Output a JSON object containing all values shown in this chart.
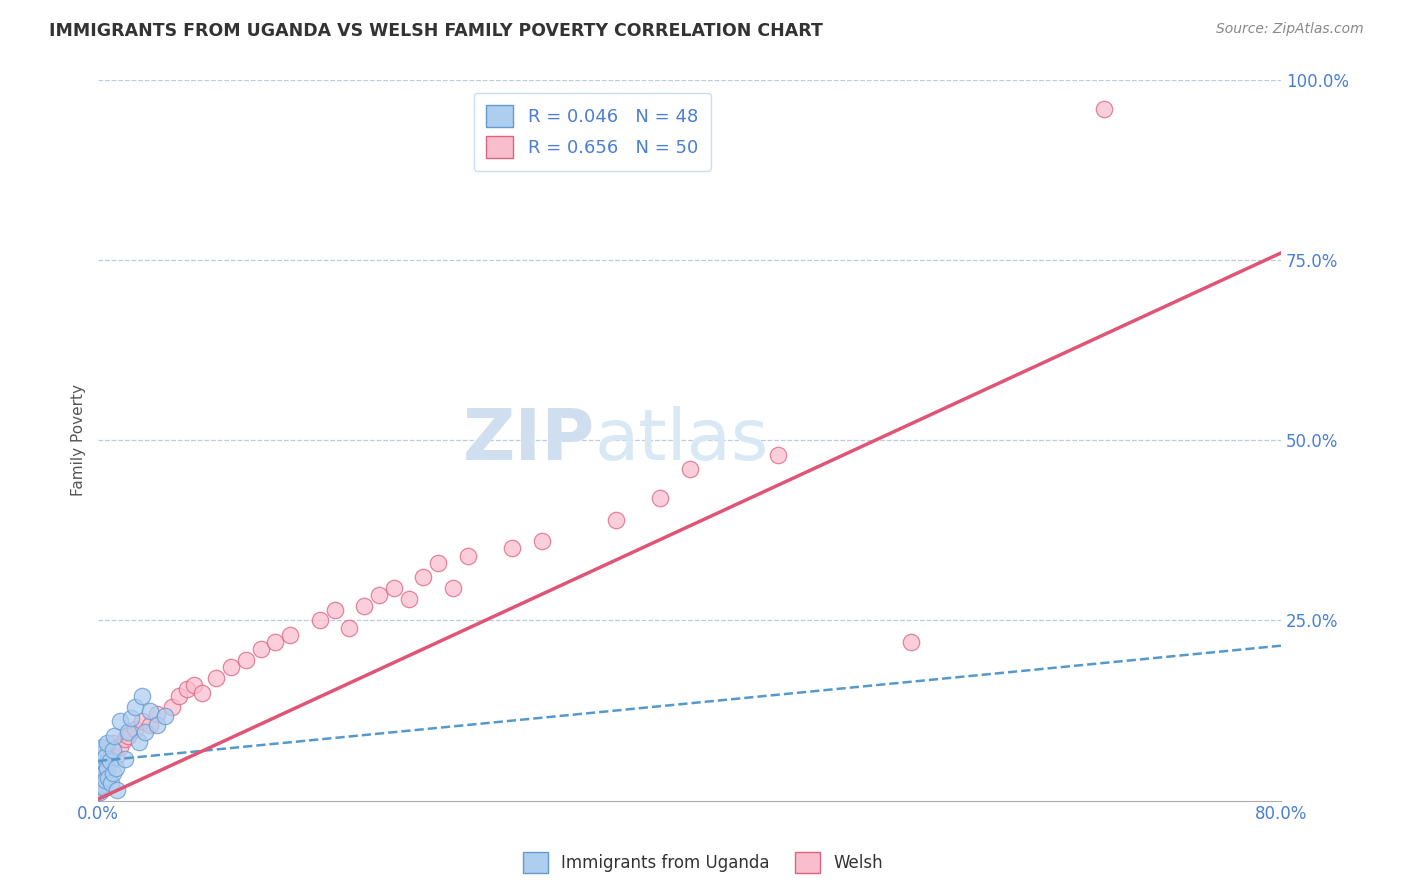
{
  "title": "IMMIGRANTS FROM UGANDA VS WELSH FAMILY POVERTY CORRELATION CHART",
  "source": "Source: ZipAtlas.com",
  "ylabel": "Family Poverty",
  "x_min": 0.0,
  "x_max": 0.8,
  "y_min": 0.0,
  "y_max": 1.0,
  "yticks": [
    0.0,
    0.25,
    0.5,
    0.75,
    1.0
  ],
  "ytick_labels": [
    "",
    "25.0%",
    "50.0%",
    "75.0%",
    "100.0%"
  ],
  "xticks": [
    0.0,
    0.16,
    0.32,
    0.48,
    0.64,
    0.8
  ],
  "xtick_labels": [
    "0.0%",
    "",
    "",
    "",
    "",
    "80.0%"
  ],
  "legend_r1": "R = 0.046",
  "legend_n1": "N = 48",
  "legend_r2": "R = 0.656",
  "legend_n2": "N = 50",
  "blue_fill": "#aecef0",
  "pink_fill": "#f9bece",
  "blue_edge": "#6699cc",
  "pink_edge": "#e06080",
  "blue_line_color": "#5599cc",
  "pink_line_color": "#e05575",
  "title_color": "#333333",
  "axis_color": "#4a7fd4",
  "grid_color": "#b8cce8",
  "watermark_color": "#d0dff0",
  "background_color": "#ffffff",
  "blue_scatter_x": [
    0.0002,
    0.0003,
    0.0004,
    0.0005,
    0.0006,
    0.0007,
    0.0008,
    0.001,
    0.001,
    0.001,
    0.0012,
    0.0013,
    0.0014,
    0.0015,
    0.0016,
    0.0018,
    0.002,
    0.002,
    0.002,
    0.002,
    0.003,
    0.003,
    0.003,
    0.004,
    0.004,
    0.005,
    0.005,
    0.006,
    0.006,
    0.007,
    0.008,
    0.009,
    0.01,
    0.01,
    0.011,
    0.012,
    0.013,
    0.015,
    0.018,
    0.02,
    0.022,
    0.025,
    0.028,
    0.03,
    0.032,
    0.035,
    0.04,
    0.045
  ],
  "blue_scatter_y": [
    0.035,
    0.04,
    0.028,
    0.05,
    0.022,
    0.018,
    0.03,
    0.045,
    0.06,
    0.012,
    0.055,
    0.038,
    0.025,
    0.07,
    0.015,
    0.042,
    0.052,
    0.033,
    0.02,
    0.065,
    0.048,
    0.022,
    0.075,
    0.038,
    0.018,
    0.06,
    0.028,
    0.045,
    0.08,
    0.032,
    0.055,
    0.025,
    0.07,
    0.038,
    0.09,
    0.045,
    0.015,
    0.11,
    0.058,
    0.095,
    0.115,
    0.13,
    0.082,
    0.145,
    0.095,
    0.125,
    0.105,
    0.118
  ],
  "pink_scatter_x": [
    0.0003,
    0.0005,
    0.0008,
    0.001,
    0.0015,
    0.002,
    0.003,
    0.004,
    0.005,
    0.006,
    0.008,
    0.01,
    0.012,
    0.015,
    0.018,
    0.02,
    0.025,
    0.03,
    0.035,
    0.04,
    0.05,
    0.055,
    0.06,
    0.065,
    0.07,
    0.08,
    0.09,
    0.1,
    0.11,
    0.12,
    0.13,
    0.15,
    0.16,
    0.17,
    0.18,
    0.19,
    0.2,
    0.21,
    0.22,
    0.23,
    0.24,
    0.25,
    0.28,
    0.3,
    0.35,
    0.38,
    0.4,
    0.46,
    0.55,
    0.68
  ],
  "pink_scatter_y": [
    0.02,
    0.03,
    0.025,
    0.038,
    0.045,
    0.035,
    0.055,
    0.048,
    0.04,
    0.065,
    0.07,
    0.08,
    0.06,
    0.075,
    0.085,
    0.09,
    0.1,
    0.11,
    0.105,
    0.12,
    0.13,
    0.145,
    0.155,
    0.16,
    0.15,
    0.17,
    0.185,
    0.195,
    0.21,
    0.22,
    0.23,
    0.25,
    0.265,
    0.24,
    0.27,
    0.285,
    0.295,
    0.28,
    0.31,
    0.33,
    0.295,
    0.34,
    0.35,
    0.36,
    0.39,
    0.42,
    0.46,
    0.48,
    0.22,
    0.96
  ],
  "blue_trend_x": [
    0.0,
    0.8
  ],
  "blue_trend_y": [
    0.055,
    0.215
  ],
  "pink_trend_x": [
    0.0,
    0.8
  ],
  "pink_trend_y": [
    0.002,
    0.76
  ]
}
